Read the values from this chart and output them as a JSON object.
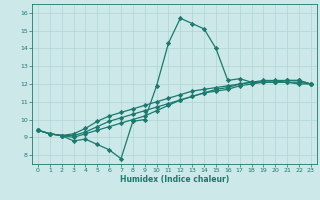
{
  "xlabel": "Humidex (Indice chaleur)",
  "ylabel": "",
  "xlim": [
    -0.5,
    23.5
  ],
  "ylim": [
    7.5,
    16.5
  ],
  "xticks": [
    0,
    1,
    2,
    3,
    4,
    5,
    6,
    7,
    8,
    9,
    10,
    11,
    12,
    13,
    14,
    15,
    16,
    17,
    18,
    19,
    20,
    21,
    22,
    23
  ],
  "yticks": [
    8,
    9,
    10,
    11,
    12,
    13,
    14,
    15,
    16
  ],
  "bg_color": "#cde8e8",
  "line_color": "#1a7a6e",
  "grid_color": "#afd4d4",
  "series": [
    [
      9.4,
      9.2,
      9.1,
      8.8,
      8.9,
      8.6,
      8.3,
      7.8,
      9.9,
      10.0,
      11.9,
      14.3,
      15.7,
      15.4,
      15.1,
      14.0,
      12.2,
      12.3,
      12.1,
      12.1,
      12.1,
      12.1,
      12.0,
      12.0
    ],
    [
      9.4,
      9.2,
      9.1,
      9.0,
      9.2,
      9.4,
      9.6,
      9.8,
      10.0,
      10.2,
      10.5,
      10.8,
      11.1,
      11.3,
      11.5,
      11.7,
      11.8,
      12.0,
      12.1,
      12.1,
      12.1,
      12.2,
      12.2,
      12.0
    ],
    [
      9.4,
      9.2,
      9.1,
      9.1,
      9.3,
      9.6,
      9.9,
      10.1,
      10.3,
      10.5,
      10.7,
      10.9,
      11.1,
      11.3,
      11.5,
      11.6,
      11.7,
      11.9,
      12.0,
      12.1,
      12.1,
      12.1,
      12.1,
      12.0
    ],
    [
      9.4,
      9.2,
      9.1,
      9.2,
      9.5,
      9.9,
      10.2,
      10.4,
      10.6,
      10.8,
      11.0,
      11.2,
      11.4,
      11.6,
      11.7,
      11.8,
      11.9,
      12.0,
      12.1,
      12.2,
      12.2,
      12.2,
      12.2,
      12.0
    ]
  ],
  "marker": "D",
  "markersize": 2.2,
  "linewidth": 0.9,
  "figsize": [
    3.2,
    2.0
  ],
  "dpi": 100
}
